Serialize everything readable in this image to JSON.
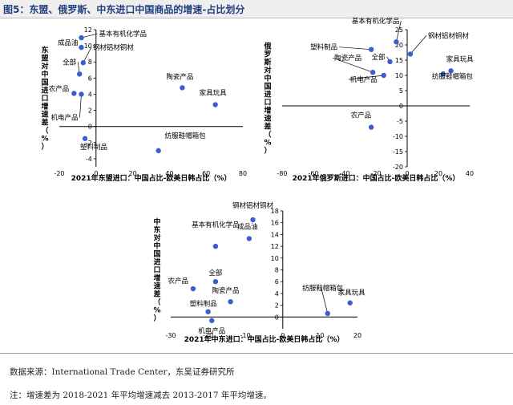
{
  "figure_title": "图5：东盟、俄罗斯、中东进口中国商品的增速-占比划分",
  "source": "数据来源：International Trade Center，东吴证券研究所",
  "note": "注：增速差为 2018-2021 年平均增速减去 2013-2017 年平均增速。",
  "colors": {
    "point": "#3a5fcd",
    "axis": "#000000",
    "title_bg": "#efefef"
  },
  "chart_data": [
    {
      "type": "scatter",
      "xlabel": "2021年东盟进口：中国占比-欧美日韩占比（%）",
      "ylabel": "东盟对中国进口增速差（%）",
      "xlim": [
        -20,
        80
      ],
      "ylim": [
        -5,
        12
      ],
      "xticks": [
        -20,
        0,
        20,
        40,
        60,
        80
      ],
      "yticks": [
        -4,
        -2,
        0,
        2,
        4,
        6,
        8,
        10,
        12
      ],
      "points": [
        {
          "label": "基本有机化学品",
          "x": -8,
          "y": 11
        },
        {
          "label": "成品油",
          "x": -8,
          "y": 9.8
        },
        {
          "label": "钢材铝材铜材",
          "x": -7,
          "y": 7.9
        },
        {
          "label": "全部",
          "x": -9,
          "y": 6.5
        },
        {
          "label": "农产品",
          "x": -12,
          "y": 4.1
        },
        {
          "label": "机电产品",
          "x": -8,
          "y": 4
        },
        {
          "label": "陶瓷产品",
          "x": 47,
          "y": 4.8
        },
        {
          "label": "家具玩具",
          "x": 65,
          "y": 2.7
        },
        {
          "label": "塑料制品",
          "x": -6,
          "y": -1.5
        },
        {
          "label": "纺服鞋帽箱包",
          "x": 34,
          "y": -3
        }
      ]
    },
    {
      "type": "scatter",
      "xlabel": "2021年俄罗斯进口：中国占比-欧美日韩占比（%）",
      "ylabel": "俄罗斯对中国进口增速差（%）",
      "xlim": [
        -80,
        40
      ],
      "ylim": [
        -20,
        25
      ],
      "xticks": [
        -80,
        -60,
        -40,
        -20,
        0,
        20,
        40
      ],
      "yticks": [
        -20,
        -15,
        -10,
        -5,
        0,
        5,
        10,
        15,
        20,
        25
      ],
      "points": [
        {
          "label": "基本有机化学品",
          "x": -7,
          "y": 21
        },
        {
          "label": "钢材铝材铜材",
          "x": 2,
          "y": 17
        },
        {
          "label": "塑料制品",
          "x": -23,
          "y": 18.5
        },
        {
          "label": "全部",
          "x": -11,
          "y": 14.5
        },
        {
          "label": "陶瓷产品",
          "x": -22,
          "y": 11
        },
        {
          "label": "机电产品",
          "x": -15,
          "y": 10
        },
        {
          "label": "家具玩具",
          "x": 28,
          "y": 11.5
        },
        {
          "label": "纺服鞋帽箱包",
          "x": 23,
          "y": 10.5
        },
        {
          "label": "农产品",
          "x": -23,
          "y": -7
        }
      ]
    },
    {
      "type": "scatter",
      "xlabel": "2021年中东进口：中国占比-欧美日韩占比（%）",
      "ylabel": "中东对中国进口增速差（%）",
      "xlim": [
        -30,
        20
      ],
      "ylim": [
        -2,
        18
      ],
      "xticks": [
        -30,
        -20,
        -10,
        0,
        10,
        20
      ],
      "yticks": [
        0,
        2,
        4,
        6,
        8,
        10,
        12,
        14,
        16,
        18
      ],
      "points": [
        {
          "label": "钢材铝材铜材",
          "x": -8,
          "y": 16.5
        },
        {
          "label": "成品油",
          "x": -9,
          "y": 13.3
        },
        {
          "label": "基本有机化学品",
          "x": -18,
          "y": 12
        },
        {
          "label": "全部",
          "x": -18,
          "y": 6
        },
        {
          "label": "农产品",
          "x": -24,
          "y": 4.8
        },
        {
          "label": "陶瓷产品",
          "x": -14,
          "y": 2.6
        },
        {
          "label": "塑料制品",
          "x": -20,
          "y": 0.9
        },
        {
          "label": "机电产品",
          "x": -19,
          "y": -0.6
        },
        {
          "label": "纺服鞋帽箱包",
          "x": 12,
          "y": 0.6
        },
        {
          "label": "家具玩具",
          "x": 18,
          "y": 2.4
        }
      ]
    }
  ]
}
